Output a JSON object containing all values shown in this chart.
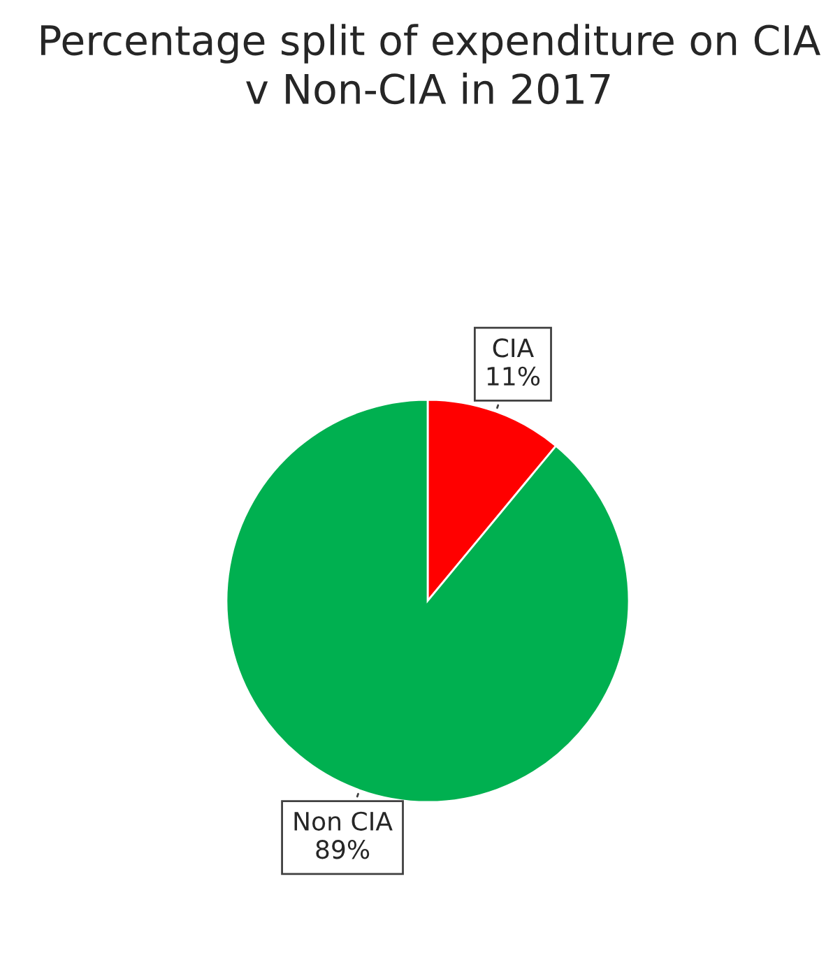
{
  "chart_data": {
    "type": "pie",
    "title": "Percentage split of expenditure on CIA v Non-CIA in 2017",
    "categories": [
      "CIA",
      "Non CIA"
    ],
    "values": [
      11,
      89
    ],
    "colors": [
      "#ff0000",
      "#00b050"
    ],
    "value_labels": [
      "11%",
      "89%"
    ]
  }
}
